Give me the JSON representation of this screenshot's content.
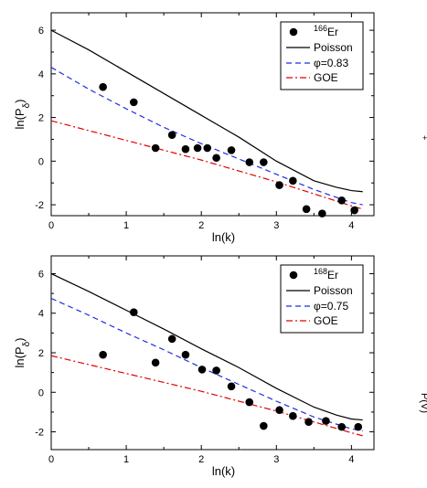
{
  "chart_data": [
    {
      "type": "line",
      "xlabel": "ln(k)",
      "ylabel": "ln(P",
      "ylabel_sub": "δ",
      "ylabel_close": ")",
      "xlim": [
        0,
        4.3
      ],
      "ylim": [
        -2.5,
        6.8
      ],
      "xticks": [
        "0",
        "1",
        "2",
        "3",
        "4"
      ],
      "yticks": [
        "-2",
        "0",
        "2",
        "4",
        "6"
      ],
      "legend_position": "top-right",
      "colors": {
        "data": "#000000",
        "poisson": "#000000",
        "phi": "#1f2ee0",
        "goe": "#e00000"
      },
      "legend": {
        "data_sup": "166",
        "data_el": "Er",
        "poisson": "Poisson",
        "phi": "φ=0.83",
        "goe": "GOE"
      },
      "data_points": {
        "x": [
          0.69,
          1.1,
          1.39,
          1.61,
          1.79,
          1.95,
          2.08,
          2.2,
          2.4,
          2.64,
          2.83,
          3.04,
          3.22,
          3.4,
          3.61,
          3.87,
          4.04
        ],
        "y": [
          3.4,
          2.7,
          0.6,
          1.2,
          0.55,
          0.6,
          0.6,
          0.15,
          0.5,
          -0.05,
          -0.05,
          -1.1,
          -0.9,
          -2.2,
          -2.4,
          -1.8,
          -2.25
        ]
      },
      "poisson": {
        "x": [
          0,
          0.5,
          1.0,
          1.5,
          2.0,
          2.5,
          3.0,
          3.5,
          3.8,
          4.0,
          4.15
        ],
        "y": [
          6.0,
          5.1,
          4.1,
          3.1,
          2.1,
          1.1,
          0.0,
          -0.9,
          -1.2,
          -1.35,
          -1.4
        ]
      },
      "phi": {
        "x": [
          0,
          0.5,
          1.0,
          1.5,
          2.0,
          2.5,
          3.0,
          3.5,
          4.0,
          4.15
        ],
        "y": [
          4.3,
          3.3,
          2.4,
          1.55,
          0.8,
          0.1,
          -0.6,
          -1.3,
          -1.9,
          -2.0
        ]
      },
      "goe": {
        "x": [
          0,
          0.5,
          1.0,
          1.5,
          2.0,
          2.5,
          3.0,
          3.5,
          4.0,
          4.15
        ],
        "y": [
          1.85,
          1.4,
          0.95,
          0.5,
          0.05,
          -0.45,
          -0.95,
          -1.5,
          -2.05,
          -2.2
        ]
      }
    },
    {
      "type": "line",
      "xlabel": "ln(k)",
      "ylabel": "ln(P",
      "ylabel_sub": "δ",
      "ylabel_close": ")",
      "xlim": [
        0,
        4.3
      ],
      "ylim": [
        -2.9,
        6.9
      ],
      "xticks": [
        "0",
        "1",
        "2",
        "3",
        "4"
      ],
      "yticks": [
        "-2",
        "0",
        "2",
        "4",
        "6"
      ],
      "legend_position": "top-right",
      "colors": {
        "data": "#000000",
        "poisson": "#000000",
        "phi": "#1f2ee0",
        "goe": "#e00000"
      },
      "legend": {
        "data_sup": "168",
        "data_el": "Er",
        "poisson": "Poisson",
        "phi": "φ=0.75",
        "goe": "GOE"
      },
      "data_points": {
        "x": [
          0.69,
          1.1,
          1.39,
          1.61,
          1.79,
          2.01,
          2.2,
          2.4,
          2.64,
          2.83,
          3.04,
          3.22,
          3.43,
          3.66,
          3.87,
          4.09
        ],
        "y": [
          1.9,
          4.05,
          1.5,
          2.7,
          1.9,
          1.15,
          1.1,
          0.3,
          -0.5,
          -1.7,
          -0.9,
          -1.2,
          -1.5,
          -1.45,
          -1.75,
          -1.75
        ]
      },
      "poisson": {
        "x": [
          0,
          0.5,
          1.0,
          1.5,
          2.0,
          2.5,
          3.0,
          3.5,
          3.8,
          4.0,
          4.15
        ],
        "y": [
          6.0,
          5.1,
          4.15,
          3.2,
          2.2,
          1.25,
          0.2,
          -0.75,
          -1.15,
          -1.35,
          -1.4
        ]
      },
      "phi": {
        "x": [
          0,
          0.5,
          1.0,
          1.5,
          2.0,
          2.5,
          3.0,
          3.5,
          4.0,
          4.15
        ],
        "y": [
          4.75,
          3.9,
          3.0,
          2.15,
          1.25,
          0.4,
          -0.45,
          -1.25,
          -1.85,
          -1.95
        ]
      },
      "goe": {
        "x": [
          0,
          0.5,
          1.0,
          1.5,
          2.0,
          2.5,
          3.0,
          3.5,
          4.0,
          4.15
        ],
        "y": [
          1.85,
          1.4,
          0.95,
          0.5,
          0.05,
          -0.45,
          -0.95,
          -1.5,
          -2.05,
          -2.2
        ]
      }
    }
  ],
  "edge_glyphs": [
    "+",
    "P(V)"
  ]
}
